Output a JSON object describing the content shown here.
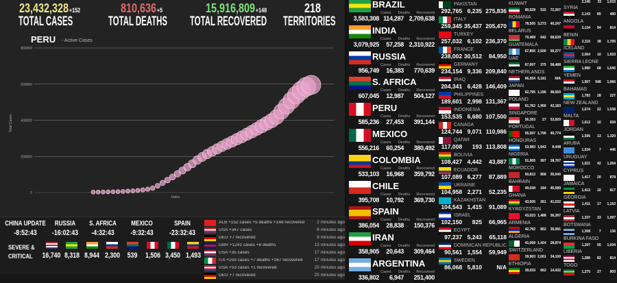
{
  "header": {
    "cases": {
      "value": "23,432,328",
      "delta": "+152",
      "label": "TOTAL CASES",
      "color": "#ece88a"
    },
    "deaths": {
      "value": "810,636",
      "delta": "+5",
      "label": "TOTAL DEATHS",
      "color": "#e06a6a"
    },
    "recovered": {
      "value": "15,916,809",
      "delta": "+148",
      "label": "TOTAL RECOVERED",
      "color": "#7fe07f"
    },
    "territories": {
      "value": "218",
      "delta": "",
      "label": "TERRITORIES",
      "color": "#ffffff"
    }
  },
  "chart_data": {
    "type": "scatter",
    "title": "PERU",
    "subtitle": "- Active Cases",
    "xlabel": "Dates",
    "ylabel": "Total Cases",
    "ylim": [
      0,
      800000
    ],
    "yticks": [
      "0",
      "200000",
      "400000",
      "600000",
      "800000"
    ],
    "grid": true,
    "color": "#e8a3c9",
    "values": [
      300,
      600,
      1000,
      1500,
      2200,
      3000,
      4000,
      5500,
      7000,
      9000,
      12000,
      16000,
      22000,
      35000,
      50000,
      66000,
      83000,
      100000,
      118000,
      136000,
      155000,
      175000,
      192000,
      208000,
      222000,
      236000,
      250000,
      263000,
      276000,
      289000,
      302000,
      316000,
      330000,
      345000,
      360000,
      375000,
      390000,
      410000,
      440000,
      470000,
      500000,
      530000,
      555000,
      575000,
      585000
    ]
  },
  "countdowns": [
    {
      "label": "CHINA UPDATE",
      "time": "-8:52:43"
    },
    {
      "label": "RUSSIA",
      "time": "-16:02:43"
    },
    {
      "label": "S. AFRICA",
      "time": "-4:32:43"
    },
    {
      "label": "MEXICO",
      "time": "-9:32:43"
    },
    {
      "label": "SPAIN",
      "time": "-23:32:43"
    }
  ],
  "severe": {
    "label1": "SEVERE &",
    "label2": "CRITICAL",
    "items": [
      {
        "flag": [
          "#b22234",
          "#fff",
          "#b22234",
          "#fff",
          "#3c3b6e"
        ],
        "value": "16,740"
      },
      {
        "flag": [
          "#229e45",
          "#f8e509",
          "#229e45"
        ],
        "value": "8,318"
      },
      {
        "flag": [
          "#ff9933",
          "#fff",
          "#138808"
        ],
        "value": "8,944"
      },
      {
        "flag": [
          "#fff",
          "#0039a6",
          "#d52b1e"
        ],
        "value": "2,300"
      },
      {
        "flag": [
          "#e03c31",
          "#007749",
          "#001489"
        ],
        "value": "539"
      },
      {
        "flag": [
          "#d91023",
          "#fff",
          "#d91023"
        ],
        "value": "1,506",
        "vertical": true
      },
      {
        "flag": [
          "#006847",
          "#fff",
          "#ce1126"
        ],
        "value": "3,450",
        "vertical": true
      },
      {
        "flag": [
          "#fcd116",
          "#003893",
          "#ce1126"
        ],
        "value": "1,493"
      }
    ]
  },
  "feed": [
    {
      "flag": [
        "#e41e20",
        "#e41e20"
      ],
      "text": "ALB +152 cases +5 deaths +148 recovered",
      "ago": "2 minutes ago"
    },
    {
      "flag": [
        "#b22234",
        "#fff",
        "#b22234",
        "#3c3b6e"
      ],
      "text": "USA +347 cases",
      "ago": "6 minutes ago"
    },
    {
      "flag": [
        "#000",
        "#dd0000",
        "#ffce00"
      ],
      "text": "DEU +7 recovered",
      "ago": "9 minutes ago"
    },
    {
      "flag": [
        "#012169",
        "#c8102e",
        "#012169"
      ],
      "text": "GBR +1241 cases +6 deaths",
      "ago": "13 minutes ago"
    },
    {
      "flag": [
        "#b22234",
        "#fff",
        "#b22234",
        "#3c3b6e"
      ],
      "text": "USA +35 cases",
      "ago": "17 minutes ago"
    },
    {
      "flag": [
        "#009246",
        "#fff",
        "#ce2b37"
      ],
      "text": "ITA +259 cases +7 deaths +267 recovered",
      "ago": "17 minutes ago",
      "vertical": true
    },
    {
      "flag": [
        "#b22234",
        "#fff",
        "#b22234",
        "#3c3b6e"
      ],
      "text": "USA +53 cases +1 recovered",
      "ago": "20 minutes ago"
    },
    {
      "flag": [
        "#000",
        "#dd0000",
        "#ffce00"
      ],
      "text": "DEU +7 recovered",
      "ago": "25 minutes ago"
    }
  ],
  "col_headers": {
    "cases": "Cases",
    "deaths": "Deaths",
    "recovered": "Recovered"
  },
  "top_countries": [
    {
      "name": "BRAZIL",
      "flag": [
        "#229e45",
        "#f8e509",
        "#229e45"
      ],
      "cases": "3,583,308",
      "deaths": "114,287",
      "recovered": "2,709,638"
    },
    {
      "name": "INDIA",
      "flag": [
        "#ff9933",
        "#fff",
        "#138808"
      ],
      "cases": "3,079,925",
      "deaths": "57,258",
      "recovered": "2,310,922"
    },
    {
      "name": "RUSSIA",
      "flag": [
        "#fff",
        "#0039a6",
        "#d52b1e"
      ],
      "cases": "956,749",
      "deaths": "16,383",
      "recovered": "770,639"
    },
    {
      "name": "S. AFRICA",
      "flag": [
        "#e03c31",
        "#007749",
        "#001489"
      ],
      "cases": "607,045",
      "deaths": "12,987",
      "recovered": "504,127"
    },
    {
      "name": "PERU",
      "flag": [
        "#d91023",
        "#fff",
        "#d91023"
      ],
      "vertical": true,
      "cases": "585,236",
      "deaths": "27,453",
      "recovered": "391,144"
    },
    {
      "name": "MEXICO",
      "flag": [
        "#006847",
        "#fff",
        "#ce1126"
      ],
      "vertical": true,
      "cases": "556,216",
      "deaths": "60,254",
      "recovered": "380,492"
    },
    {
      "name": "COLOMBIA",
      "flag": [
        "#fcd116",
        "#fcd116",
        "#003893",
        "#ce1126"
      ],
      "cases": "533,103",
      "deaths": "16,968",
      "recovered": "359,792"
    },
    {
      "name": "CHILE",
      "flag": [
        "#fff",
        "#d52b1e"
      ],
      "cases": "395,708",
      "deaths": "10,792",
      "recovered": "369,730"
    },
    {
      "name": "SPAIN",
      "flag": [
        "#aa151b",
        "#f1bf00",
        "#f1bf00",
        "#aa151b"
      ],
      "cases": "386,054",
      "deaths": "28,838",
      "recovered": "150,376"
    },
    {
      "name": "IRAN",
      "flag": [
        "#239f40",
        "#fff",
        "#da0000"
      ],
      "cases": "358,905",
      "deaths": "20,643",
      "recovered": "309,464"
    },
    {
      "name": "ARGENTINA",
      "flag": [
        "#74acdf",
        "#fff",
        "#74acdf"
      ],
      "cases": "336,802",
      "deaths": "6,947",
      "recovered": "251,400"
    }
  ],
  "mid_countries": [
    {
      "name": "PAKISTAN",
      "flag": [
        "#fff",
        "#01411c",
        "#01411c"
      ],
      "vertical": true,
      "cases": "292,765",
      "deaths": "6,235",
      "recovered": "275,836"
    },
    {
      "name": "ITALY",
      "flag": [
        "#009246",
        "#fff",
        "#ce2b37"
      ],
      "vertical": true,
      "cases": "259,345",
      "deaths": "35,437",
      "recovered": "205,470"
    },
    {
      "name": "TURKEY",
      "flag": [
        "#e30a17",
        "#e30a17"
      ],
      "cases": "257,032",
      "deaths": "6,102",
      "recovered": "236,370"
    },
    {
      "name": "FRANCE",
      "flag": [
        "#0055a4",
        "#fff",
        "#ef4135"
      ],
      "vertical": true,
      "cases": "238,002",
      "deaths": "30,512",
      "recovered": "84,950"
    },
    {
      "name": "GERMANY",
      "flag": [
        "#000",
        "#dd0000",
        "#ffce00"
      ],
      "cases": "234,154",
      "deaths": "9,336",
      "recovered": "209,840"
    },
    {
      "name": "IRAQ",
      "flag": [
        "#ce1126",
        "#fff",
        "#000"
      ],
      "cases": "204,341",
      "deaths": "6,428",
      "recovered": "146,409"
    },
    {
      "name": "PHILIPPINES",
      "flag": [
        "#0038a8",
        "#ce1126"
      ],
      "cases": "189,601",
      "deaths": "2,998",
      "recovered": "131,367"
    },
    {
      "name": "INDONESIA",
      "flag": [
        "#ce1126",
        "#fff"
      ],
      "cases": "153,535",
      "deaths": "6,680",
      "recovered": "107,500"
    },
    {
      "name": "CANADA",
      "flag": [
        "#d52b1e",
        "#fff",
        "#d52b1e"
      ],
      "vertical": true,
      "cases": "124,744",
      "deaths": "9,071",
      "recovered": "110,986"
    },
    {
      "name": "QATAR",
      "flag": [
        "#fff",
        "#8a1538",
        "#8a1538"
      ],
      "vertical": true,
      "cases": "117,008",
      "deaths": "193",
      "recovered": "113,808"
    },
    {
      "name": "BOLIVIA",
      "flag": [
        "#d52b1e",
        "#f9e300",
        "#007934"
      ],
      "cases": "108,427",
      "deaths": "4,442",
      "recovered": "43,887"
    },
    {
      "name": "ECUADOR",
      "flag": [
        "#ffdd00",
        "#ffdd00",
        "#034ea2",
        "#ed1c24"
      ],
      "cases": "107,089",
      "deaths": "6,277",
      "recovered": "87,889"
    },
    {
      "name": "UKRAINE",
      "flag": [
        "#0057b7",
        "#ffd700"
      ],
      "cases": "104,958",
      "deaths": "2,271",
      "recovered": "52,235"
    },
    {
      "name": "KAZAKHSTAN",
      "flag": [
        "#00afca",
        "#00afca"
      ],
      "cases": "104,543",
      "deaths": "1,415",
      "recovered": "91,089"
    },
    {
      "name": "ISRAEL",
      "flag": [
        "#0038b8",
        "#fff",
        "#fff",
        "#0038b8"
      ],
      "cases": "102,150",
      "deaths": "825",
      "recovered": "66,965"
    },
    {
      "name": "EGYPT",
      "flag": [
        "#ce1126",
        "#fff",
        "#000"
      ],
      "cases": "97,237",
      "deaths": "5,243",
      "recovered": "65,118"
    },
    {
      "name": "DOMINICAN REPUBLIC",
      "flag": [
        "#002d62",
        "#fff",
        "#ce1126"
      ],
      "cases": "90,561",
      "deaths": "1,554",
      "recovered": "59,949"
    },
    {
      "name": "SWEDEN",
      "flag": [
        "#006aa7",
        "#fecc00",
        "#006aa7"
      ],
      "cases": "86,068",
      "deaths": "5,810",
      "recovered": "N/A"
    }
  ],
  "small_countries_a": [
    {
      "name": "KUWAIT",
      "flag": [
        "#007a3d",
        "#fff",
        "#ce1126"
      ],
      "cases": "80,528",
      "deaths": "515",
      "recovered": "72,307"
    },
    {
      "name": "ROMANIA",
      "flag": [
        "#002b7f",
        "#fcd116",
        "#ce1126"
      ],
      "vertical": true,
      "cases": "78,505",
      "deaths": "3,273",
      "recovered": "40,247"
    },
    {
      "name": "BELARUS",
      "flag": [
        "#c8313e",
        "#c8313e",
        "#4aa657"
      ],
      "cases": "70,468",
      "deaths": "642",
      "recovered": "68,639"
    },
    {
      "name": "GUATEMALA",
      "flag": [
        "#4997d0",
        "#fff",
        "#4997d0"
      ],
      "vertical": true,
      "cases": "67,856",
      "deaths": "2,500",
      "recovered": "56,277"
    },
    {
      "name": "UAE",
      "flag": [
        "#00732f",
        "#fff",
        "#000"
      ],
      "cases": "67,007",
      "deaths": "375",
      "recovered": "58,488"
    },
    {
      "name": "NETHERLANDS",
      "flag": [
        "#ae1c28",
        "#fff",
        "#21468b"
      ],
      "cases": "66,554",
      "deaths": "6,181",
      "recovered": "N/A"
    },
    {
      "name": "JAPAN",
      "flag": [
        "#fff",
        "#fff"
      ],
      "cases": "62,795",
      "deaths": "1,196",
      "recovered": "48,650"
    },
    {
      "name": "POLAND",
      "flag": [
        "#fff",
        "#dc143c"
      ],
      "cases": "61,762",
      "deaths": "1,956",
      "recovered": "42,183"
    },
    {
      "name": "SINGAPORE",
      "flag": [
        "#ef3340",
        "#fff"
      ],
      "cases": "56,353",
      "deaths": "27",
      "recovered": "53,920"
    },
    {
      "name": "PORTUGAL",
      "flag": [
        "#006600",
        "#ff0000",
        "#ff0000"
      ],
      "vertical": true,
      "cases": "55,597",
      "deaths": "1,796",
      "recovered": "40,774"
    },
    {
      "name": "HONDURAS",
      "flag": [
        "#0073cf",
        "#fff",
        "#0073cf"
      ],
      "cases": "53,983",
      "deaths": "1,643",
      "recovered": "8,448"
    },
    {
      "name": "NIGERIA",
      "flag": [
        "#008751",
        "#fff",
        "#008751"
      ],
      "vertical": true,
      "cases": "51,905",
      "deaths": "997",
      "recovered": "38,767"
    },
    {
      "name": "MOROCCO",
      "flag": [
        "#c1272d",
        "#c1272d"
      ],
      "cases": "50,812",
      "deaths": "858",
      "recovered": "35,040"
    },
    {
      "name": "BAHRAIN",
      "flag": [
        "#fff",
        "#ce1126",
        "#ce1126"
      ],
      "vertical": true,
      "cases": "49,038",
      "deaths": "184",
      "recovered": "45,589"
    },
    {
      "name": "GHANA",
      "flag": [
        "#ce1126",
        "#fcd116",
        "#006b3f"
      ],
      "cases": "43,505",
      "deaths": "261",
      "recovered": "41,532"
    },
    {
      "name": "KYRGYZSTAN",
      "flag": [
        "#e8112d",
        "#e8112d"
      ],
      "cases": "43,023",
      "deaths": "1,488",
      "recovered": "36,397"
    },
    {
      "name": "ARMENIA",
      "flag": [
        "#d90012",
        "#0033a0",
        "#f2a800"
      ],
      "cases": "42,792",
      "deaths": "852",
      "recovered": "35,991"
    },
    {
      "name": "ALGERIA",
      "flag": [
        "#006233",
        "#fff"
      ],
      "vertical": true,
      "cases": "41,068",
      "deaths": "1,424",
      "recovered": "28,874"
    },
    {
      "name": "SWITZERLAND",
      "flag": [
        "#d52b1e",
        "#d52b1e"
      ],
      "cases": "39,903",
      "deaths": "2,001",
      "recovered": "34,100"
    },
    {
      "name": "ETHIOPIA",
      "flag": [
        "#078930",
        "#fcdd09",
        "#da121a"
      ],
      "cases": "39,033",
      "deaths": "662",
      "recovered": "14,432"
    }
  ],
  "small_countries_b": [
    {
      "name": "SYRIA",
      "flag": [
        "#ce1126",
        "#fff",
        "#000"
      ],
      "cases": "2,143",
      "deaths": "85",
      "recovered": "490"
    },
    {
      "name": "ANGOLA",
      "flag": [
        "#cc092f",
        "#000"
      ],
      "cases": "2,134",
      "deaths": "94",
      "recovered": "814"
    },
    {
      "name": "BENIN",
      "flag": [
        "#008751",
        "#fcd116",
        "#e8112d"
      ],
      "vertical": true,
      "cases": "2,115",
      "deaths": "38",
      "recovered": "1,705"
    },
    {
      "name": "ICELAND",
      "flag": [
        "#02529c",
        "#dc1e35",
        "#02529c"
      ],
      "cases": "2,064",
      "deaths": "10",
      "recovered": "1,933"
    },
    {
      "name": "SIERRA LEONE",
      "flag": [
        "#1eb53a",
        "#fff",
        "#0072c6"
      ],
      "cases": "1,980",
      "deaths": "68",
      "recovered": "1,545"
    },
    {
      "name": "YEMEN",
      "flag": [
        "#ce1126",
        "#fff",
        "#000"
      ],
      "cases": "1,907",
      "deaths": "548",
      "recovered": "1,066"
    },
    {
      "name": "BAHAMAS",
      "flag": [
        "#00abc9",
        "#fae042",
        "#00abc9"
      ],
      "cases": "1,783",
      "deaths": "28",
      "recovered": "227"
    },
    {
      "name": "NEW ZEALAND",
      "flag": [
        "#012169",
        "#012169"
      ],
      "cases": "1,674",
      "deaths": "22",
      "recovered": "1,538"
    },
    {
      "name": "MALTA",
      "flag": [
        "#fff",
        "#cf142b"
      ],
      "vertical": true,
      "cases": "1,612",
      "deaths": "10",
      "recovered": "934"
    },
    {
      "name": "JORDAN",
      "flag": [
        "#000",
        "#fff",
        "#007a3d"
      ],
      "cases": "1,596",
      "deaths": "13",
      "recovered": "1,320"
    },
    {
      "name": "ARUBA",
      "flag": [
        "#418fde",
        "#418fde"
      ],
      "cases": "1,534",
      "deaths": "7",
      "recovered": "446"
    },
    {
      "name": "URUGUAY",
      "flag": [
        "#fff",
        "#0038a8",
        "#fff",
        "#0038a8"
      ],
      "cases": "1,521",
      "deaths": "42",
      "recovered": "1,264"
    },
    {
      "name": "CYPRUS",
      "flag": [
        "#fff",
        "#fff"
      ],
      "cases": "1,417",
      "deaths": "20",
      "recovered": "878"
    },
    {
      "name": "JAMAICA",
      "flag": [
        "#009b3a",
        "#000",
        "#fed100"
      ],
      "cases": "1,413",
      "deaths": "16",
      "recovered": "817"
    },
    {
      "name": "GEORGIA",
      "flag": [
        "#fff",
        "#ff0000",
        "#fff"
      ],
      "cases": "1,411",
      "deaths": "17",
      "recovered": "1,152"
    },
    {
      "name": "LATVIA",
      "flag": [
        "#9e3039",
        "#fff",
        "#9e3039"
      ],
      "cases": "1,337",
      "deaths": "33",
      "recovered": "1,097"
    },
    {
      "name": "BOTSWANA",
      "flag": [
        "#75aadb",
        "#000",
        "#75aadb"
      ],
      "cases": "1,308",
      "deaths": "7",
      "recovered": "136"
    },
    {
      "name": "BURKINA FASO",
      "flag": [
        "#ef2b2d",
        "#009e49"
      ],
      "cases": "1,297",
      "deaths": "55",
      "recovered": "1,034"
    },
    {
      "name": "LIBERIA",
      "flag": [
        "#bf0a30",
        "#fff",
        "#bf0a30",
        "#fff"
      ],
      "cases": "1,286",
      "deaths": "82",
      "recovered": "814"
    },
    {
      "name": "TOGO",
      "flag": [
        "#006a4e",
        "#ffce00",
        "#006a4e",
        "#d21034"
      ],
      "cases": "1,275",
      "deaths": "27",
      "recovered": "903"
    }
  ],
  "small_top_partial": {
    "cases": "2,146",
    "deaths": "33",
    "recovered": "1,015"
  }
}
